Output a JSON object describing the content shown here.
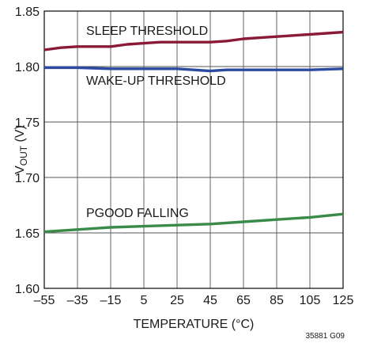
{
  "chart_data": {
    "type": "line",
    "xlabel": "TEMPERATURE (°C)",
    "ylabel_main": "V",
    "ylabel_sub": "OUT",
    "ylabel_unit": " (V)",
    "x_ticks": [
      -55,
      -35,
      -15,
      5,
      25,
      45,
      65,
      85,
      105,
      125
    ],
    "x_tick_labels": [
      "–55",
      "–35",
      "–15",
      "5",
      "25",
      "45",
      "65",
      "85",
      "105",
      "125"
    ],
    "y_ticks": [
      1.6,
      1.65,
      1.7,
      1.75,
      1.8,
      1.85
    ],
    "y_tick_labels": [
      "1.60",
      "1.65",
      "1.70",
      "1.75",
      "1.80",
      "1.85"
    ],
    "xlim": [
      -55,
      125
    ],
    "ylim": [
      1.6,
      1.85
    ],
    "grid": true,
    "figure_id": "35881 G09",
    "series": [
      {
        "name": "SLEEP THRESHOLD",
        "color": "#8b1a36",
        "x": [
          -55,
          -45,
          -35,
          -25,
          -15,
          -5,
          5,
          15,
          25,
          35,
          45,
          55,
          65,
          75,
          85,
          95,
          105,
          115,
          125
        ],
        "y": [
          1.815,
          1.817,
          1.818,
          1.818,
          1.818,
          1.82,
          1.821,
          1.822,
          1.822,
          1.822,
          1.822,
          1.823,
          1.825,
          1.826,
          1.827,
          1.828,
          1.829,
          1.83,
          1.831
        ]
      },
      {
        "name": "WAKE-UP THRESHOLD",
        "color": "#2b4aa0",
        "x": [
          -55,
          -35,
          -15,
          5,
          25,
          35,
          45,
          55,
          65,
          85,
          105,
          125
        ],
        "y": [
          1.799,
          1.799,
          1.798,
          1.798,
          1.798,
          1.797,
          1.796,
          1.797,
          1.797,
          1.797,
          1.797,
          1.798
        ]
      },
      {
        "name": "PGOOD FALLING",
        "color": "#3a8a4a",
        "x": [
          -55,
          -35,
          -15,
          5,
          25,
          45,
          65,
          85,
          105,
          125
        ],
        "y": [
          1.651,
          1.653,
          1.655,
          1.656,
          1.657,
          1.658,
          1.66,
          1.662,
          1.664,
          1.667
        ]
      }
    ]
  }
}
